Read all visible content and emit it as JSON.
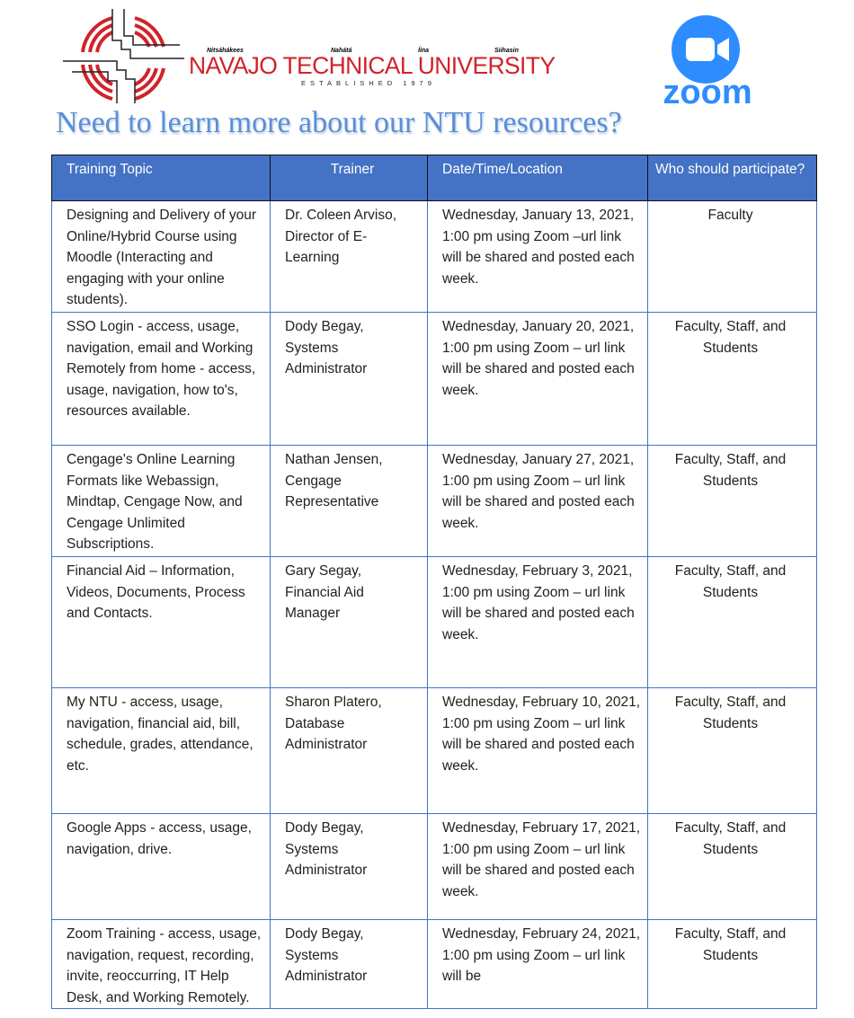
{
  "header": {
    "taglines": [
      "Nitsáhákees",
      "Nahátá",
      "Íína",
      "Siihasin"
    ],
    "university": "NAVAJO TECHNICAL UNIVERSITY",
    "established": "ESTABLISHED 1979",
    "zoom": "zoom"
  },
  "title": "Need to learn more about our NTU resources?",
  "table": {
    "columns": [
      "Training Topic",
      "Trainer",
      "Date/Time/Location",
      "Who should participate?"
    ],
    "rows": [
      [
        "Designing and Delivery of your Online/Hybrid Course using Moodle (Interacting and engaging with your online students).",
        "Dr. Coleen Arviso, Director of E-Learning",
        "Wednesday, January 13, 2021, 1:00 pm using Zoom –url link will be shared and posted each week.",
        "Faculty"
      ],
      [
        "SSO Login - access, usage, navigation, email and Working Remotely from home - access, usage, navigation, how to's, resources available.",
        "Dody Begay, Systems Administrator",
        "Wednesday, January 20, 2021, 1:00 pm using Zoom – url link will be shared and posted each week.",
        "Faculty, Staff, and Students"
      ],
      [
        "Cengage's Online Learning Formats like Webassign, Mindtap, Cengage Now, and Cengage Unlimited Subscriptions.",
        "Nathan Jensen, Cengage Representative",
        "Wednesday, January 27, 2021, 1:00 pm using Zoom – url link will be shared and posted each week.",
        "Faculty, Staff, and Students"
      ],
      [
        "Financial Aid – Information, Videos, Documents, Process and Contacts.",
        "Gary Segay, Financial Aid Manager",
        "Wednesday, February 3, 2021, 1:00 pm using Zoom – url link will be shared and posted each week.",
        "Faculty, Staff, and Students"
      ],
      [
        "My NTU - access, usage, navigation, financial aid, bill, schedule, grades, attendance, etc.",
        "Sharon Platero, Database Administrator",
        "Wednesday, February 10, 2021, 1:00 pm using Zoom – url link will be shared and posted each week.",
        "Faculty, Staff, and Students"
      ],
      [
        "Google Apps - access, usage, navigation, drive.",
        "Dody Begay, Systems Administrator",
        "Wednesday, February 17, 2021, 1:00 pm using Zoom – url link will be shared and posted each week.",
        "Faculty, Staff, and Students"
      ],
      [
        "Zoom Training - access, usage, navigation, request, recording, invite, reoccurring, IT Help Desk, and Working Remotely.",
        "Dody Begay, Systems Administrator",
        "Wednesday, February 24, 2021, 1:00 pm using Zoom – url link will be",
        "Faculty, Staff, and Students"
      ]
    ]
  }
}
